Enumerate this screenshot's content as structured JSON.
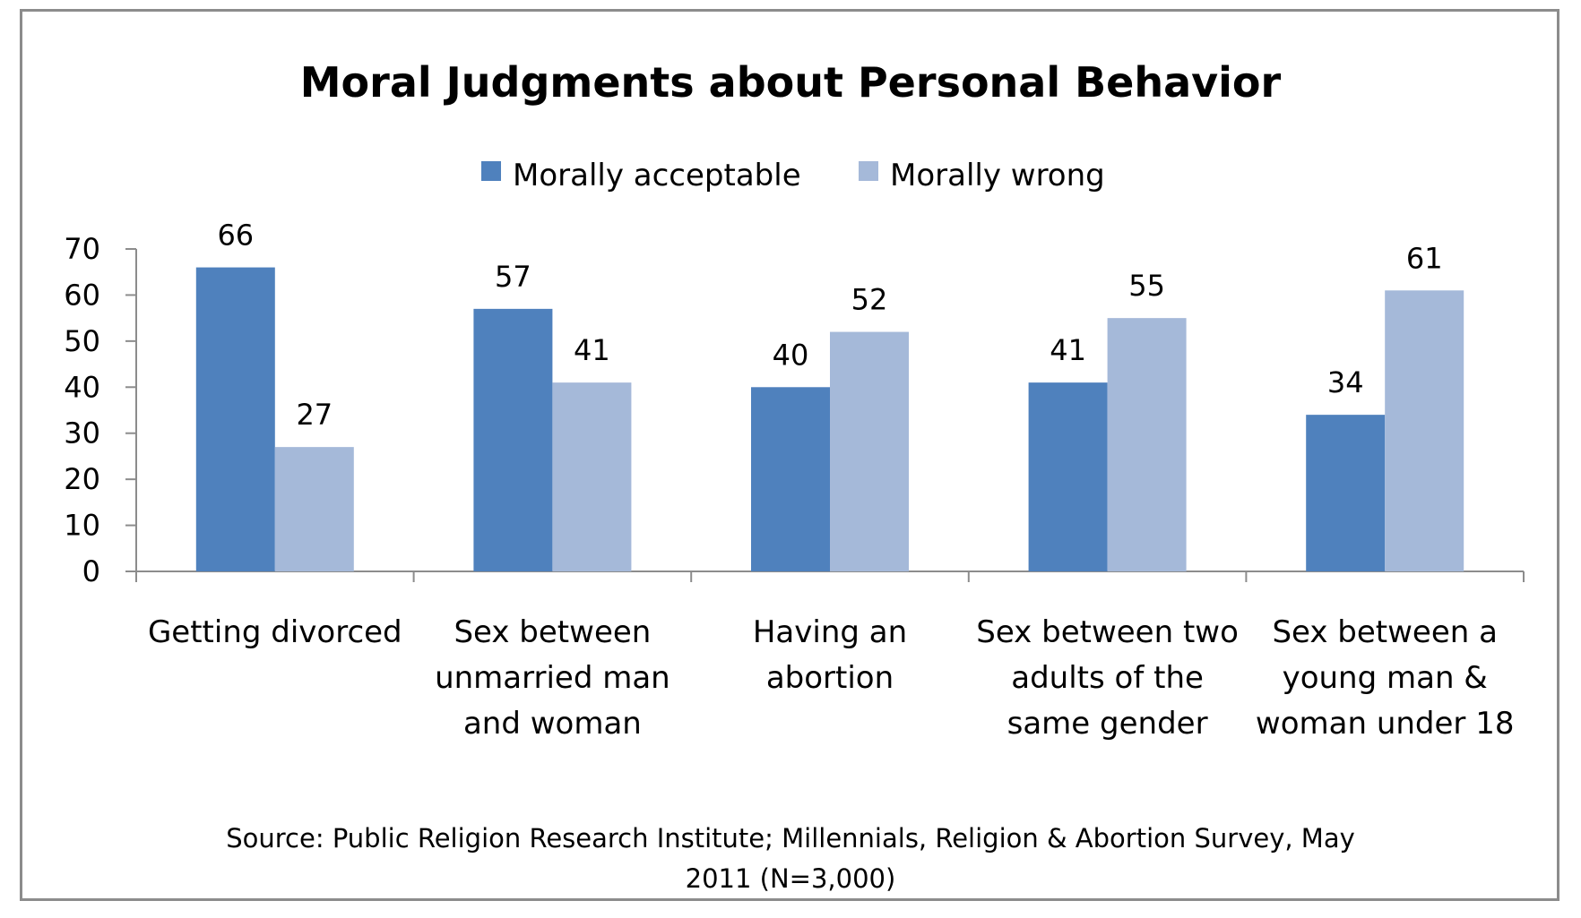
{
  "chart_data": {
    "type": "bar",
    "title": "Moral Judgments about Personal Behavior",
    "categories": [
      [
        "Getting divorced"
      ],
      [
        "Sex between",
        "unmarried man",
        "and woman"
      ],
      [
        "Having an",
        "abortion"
      ],
      [
        "Sex between two",
        "adults of the",
        "same gender"
      ],
      [
        "Sex between a",
        "young man &",
        "woman under 18"
      ]
    ],
    "series": [
      {
        "name": "Morally acceptable",
        "color": "#4f81bd",
        "values": [
          66,
          57,
          40,
          41,
          34
        ]
      },
      {
        "name": "Morally wrong",
        "color": "#a5b9d9",
        "values": [
          27,
          41,
          52,
          55,
          61
        ]
      }
    ],
    "ylim": [
      0,
      70
    ],
    "yticks": [
      "0",
      "10",
      "20",
      "30",
      "40",
      "50",
      "60",
      "70"
    ],
    "grid": false,
    "legend": "top-center",
    "data_labels": true,
    "source_lines": [
      "Source: Public Religion Research Institute; Millennials, Religion & Abortion Survey, May",
      "2011 (N=3,000)"
    ]
  }
}
